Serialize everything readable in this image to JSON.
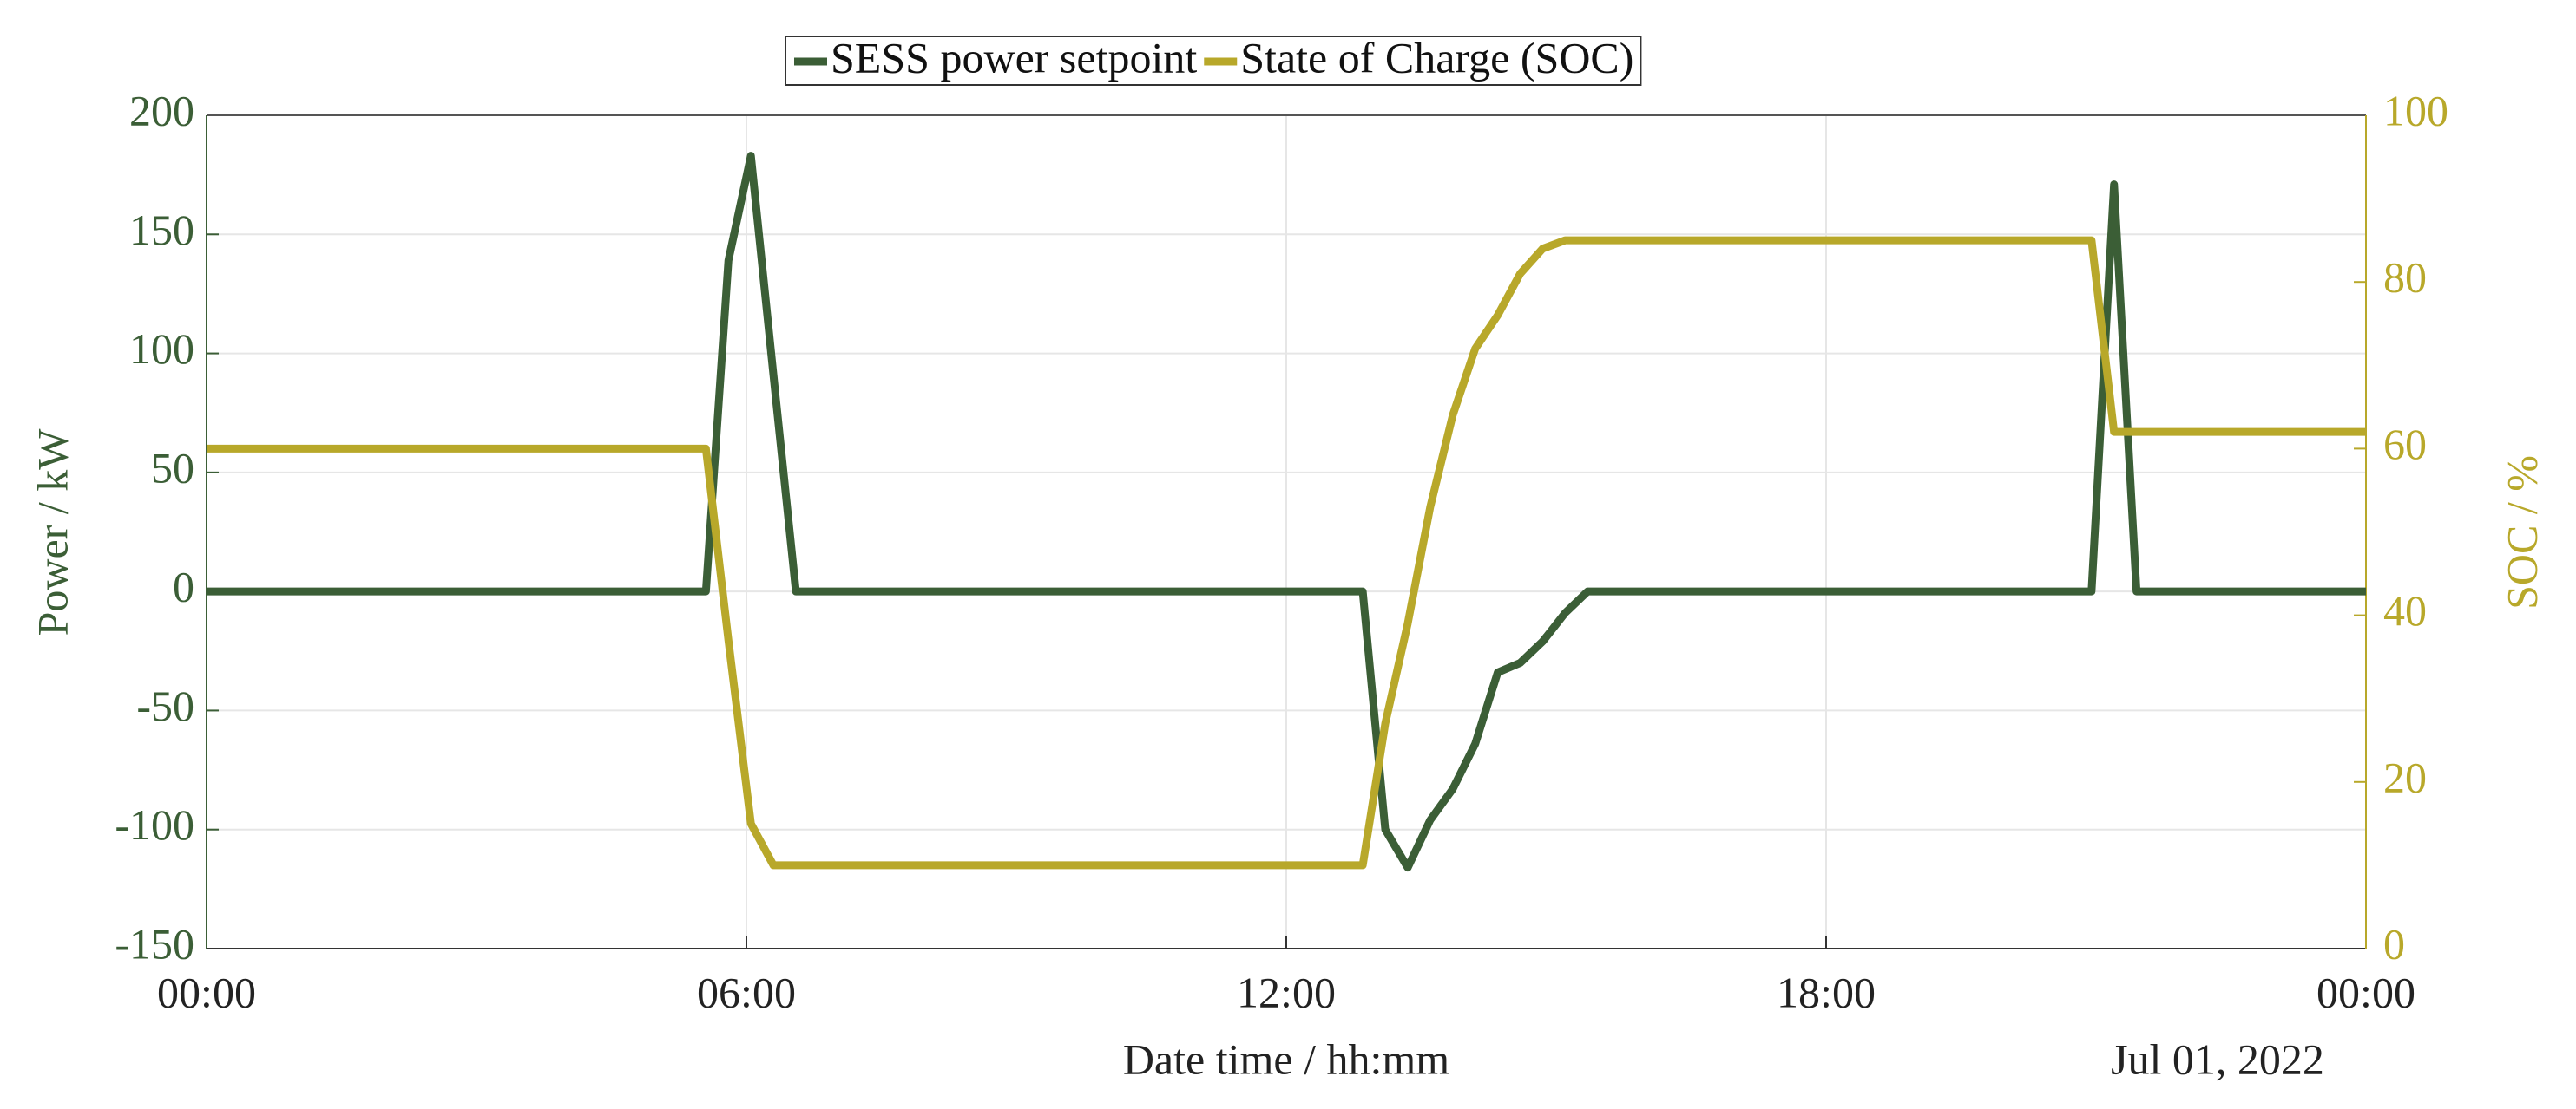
{
  "chart_data": {
    "type": "line",
    "x_label": "Date time  /  hh:mm",
    "y_label": "Power  /  kW",
    "y2_label": "SOC  /  %",
    "annotation": "Jul 01, 2022",
    "x": [
      0,
      5.55,
      5.8,
      6.05,
      6.3,
      6.55,
      12.85,
      13.1,
      13.35,
      13.6,
      13.85,
      14.1,
      14.35,
      14.6,
      14.85,
      15.1,
      15.35,
      20.95,
      21.2,
      21.45,
      24
    ],
    "series": [
      {
        "name": "SESS power setpoint",
        "color": "#3b5e36",
        "axis": "y",
        "values": [
          0,
          0,
          139,
          183,
          91,
          0,
          0,
          -100,
          -116,
          -96,
          -83,
          -64,
          -34,
          -30,
          -21,
          -9,
          0,
          0,
          171,
          0,
          0
        ]
      },
      {
        "name": "State of Charge (SOC)",
        "color": "#b8a82a",
        "axis": "y2",
        "values": [
          60,
          60,
          37,
          15,
          10,
          10,
          10,
          27,
          39,
          53,
          64,
          72,
          76,
          81,
          84,
          85,
          85,
          85,
          62,
          62,
          62
        ]
      }
    ],
    "xlim": [
      0,
      24
    ],
    "xticks": [
      {
        "value": 0,
        "label": "00:00"
      },
      {
        "value": 6,
        "label": "06:00"
      },
      {
        "value": 12,
        "label": "12:00"
      },
      {
        "value": 18,
        "label": "18:00"
      },
      {
        "value": 24,
        "label": "00:00"
      }
    ],
    "ylim": [
      -150,
      200
    ],
    "yticks": [
      -150,
      -100,
      -50,
      0,
      50,
      100,
      150,
      200
    ],
    "y2lim": [
      0,
      100
    ],
    "y2ticks": [
      0,
      20,
      40,
      60,
      80,
      100
    ],
    "grid": true,
    "legend": "top"
  }
}
